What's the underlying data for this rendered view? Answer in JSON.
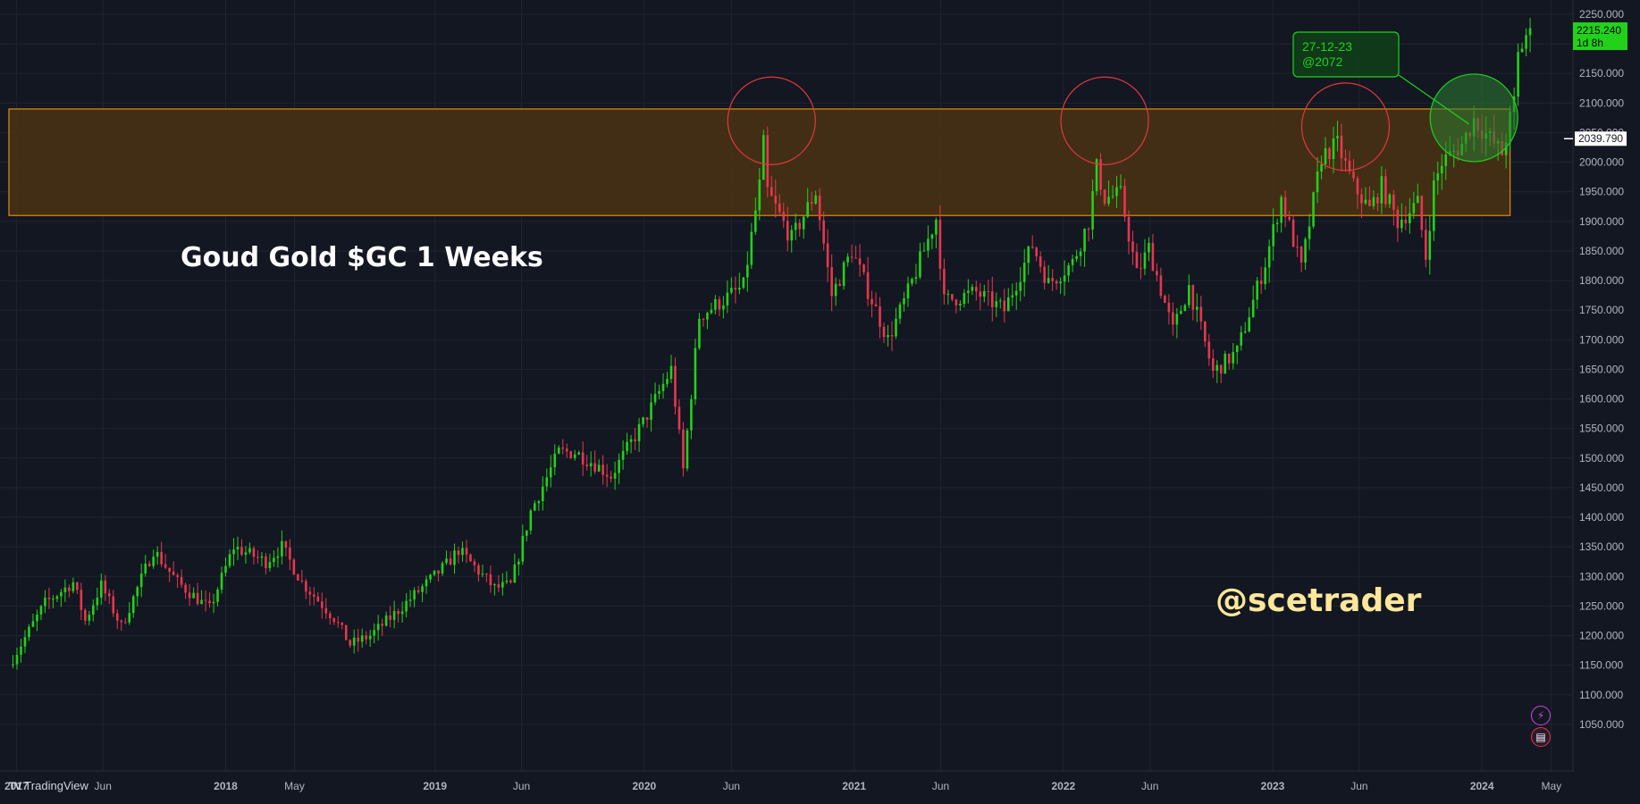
{
  "chart_data": {
    "type": "candlestick",
    "title": "Goud Gold $GC 1 Weeks",
    "symbol": "$GC",
    "interval": "1 Weeks",
    "watermark": "@scetrader",
    "ylim": [
      1000,
      2270
    ],
    "y_ticks": [
      "2250.000",
      "2200.000",
      "2150.000",
      "2100.000",
      "2050.000",
      "2000.000",
      "1950.000",
      "1900.000",
      "1850.000",
      "1800.000",
      "1750.000",
      "1700.000",
      "1650.000",
      "1600.000",
      "1550.000",
      "1500.000",
      "1450.000",
      "1400.000",
      "1350.000",
      "1300.000",
      "1250.000",
      "1200.000",
      "1150.000",
      "1100.000",
      "1050.000"
    ],
    "x_ticks": [
      {
        "label": "2017",
        "date": "2017-01"
      },
      {
        "label": "Jun",
        "date": "2017-06"
      },
      {
        "label": "2018",
        "date": "2018-01"
      },
      {
        "label": "May",
        "date": "2018-05"
      },
      {
        "label": "2019",
        "date": "2019-01"
      },
      {
        "label": "Jun",
        "date": "2019-06"
      },
      {
        "label": "2020",
        "date": "2020-01"
      },
      {
        "label": "Jun",
        "date": "2020-06"
      },
      {
        "label": "2021",
        "date": "2021-01"
      },
      {
        "label": "Jun",
        "date": "2021-06"
      },
      {
        "label": "2022",
        "date": "2022-01"
      },
      {
        "label": "Jun",
        "date": "2022-06"
      },
      {
        "label": "2023",
        "date": "2023-01"
      },
      {
        "label": "Jun",
        "date": "2023-06"
      },
      {
        "label": "2024",
        "date": "2024-01"
      },
      {
        "label": "May",
        "date": "2024-05"
      }
    ],
    "price_path": [
      [
        "2016-12-26",
        1150
      ],
      [
        "2017-02-27",
        1255
      ],
      [
        "2017-04-17",
        1290
      ],
      [
        "2017-05-08",
        1225
      ],
      [
        "2017-06-05",
        1285
      ],
      [
        "2017-07-10",
        1215
      ],
      [
        "2017-09-04",
        1345
      ],
      [
        "2017-10-16",
        1290
      ],
      [
        "2017-12-11",
        1245
      ],
      [
        "2018-01-22",
        1350
      ],
      [
        "2018-03-19",
        1325
      ],
      [
        "2018-04-16",
        1350
      ],
      [
        "2018-05-21",
        1290
      ],
      [
        "2018-07-16",
        1230
      ],
      [
        "2018-08-13",
        1185
      ],
      [
        "2018-09-17",
        1200
      ],
      [
        "2018-10-22",
        1230
      ],
      [
        "2019-01-28",
        1320
      ],
      [
        "2019-02-18",
        1345
      ],
      [
        "2019-04-22",
        1280
      ],
      [
        "2019-05-20",
        1285
      ],
      [
        "2019-06-24",
        1410
      ],
      [
        "2019-08-12",
        1510
      ],
      [
        "2019-09-09",
        1510
      ],
      [
        "2019-10-14",
        1490
      ],
      [
        "2019-11-11",
        1470
      ],
      [
        "2020-01-06",
        1560
      ],
      [
        "2020-02-24",
        1650
      ],
      [
        "2020-03-16",
        1480
      ],
      [
        "2020-04-13",
        1740
      ],
      [
        "2020-06-29",
        1790
      ],
      [
        "2020-07-27",
        1960
      ],
      [
        "2020-08-03",
        2030
      ],
      [
        "2020-08-10",
        1950
      ],
      [
        "2020-09-21",
        1870
      ],
      [
        "2020-11-02",
        1950
      ],
      [
        "2020-11-30",
        1775
      ],
      [
        "2021-01-04",
        1850
      ],
      [
        "2021-03-08",
        1700
      ],
      [
        "2021-04-12",
        1780
      ],
      [
        "2021-05-31",
        1905
      ],
      [
        "2021-06-14",
        1765
      ],
      [
        "2021-08-09",
        1780
      ],
      [
        "2021-09-27",
        1750
      ],
      [
        "2021-11-15",
        1860
      ],
      [
        "2021-12-13",
        1795
      ],
      [
        "2022-01-24",
        1830
      ],
      [
        "2022-02-21",
        1900
      ],
      [
        "2022-03-07",
        1990
      ],
      [
        "2022-03-21",
        1940
      ],
      [
        "2022-04-18",
        1945
      ],
      [
        "2022-05-16",
        1810
      ],
      [
        "2022-06-06",
        1855
      ],
      [
        "2022-07-18",
        1715
      ],
      [
        "2022-08-15",
        1790
      ],
      [
        "2022-09-26",
        1645
      ],
      [
        "2022-11-07",
        1680
      ],
      [
        "2022-12-26",
        1830
      ],
      [
        "2023-01-23",
        1940
      ],
      [
        "2023-02-27",
        1820
      ],
      [
        "2023-04-03",
        2010
      ],
      [
        "2023-05-01",
        2030
      ],
      [
        "2023-05-29",
        1960
      ],
      [
        "2023-06-26",
        1920
      ],
      [
        "2023-07-17",
        1960
      ],
      [
        "2023-08-14",
        1900
      ],
      [
        "2023-09-18",
        1930
      ],
      [
        "2023-10-02",
        1840
      ],
      [
        "2023-10-16",
        1960
      ],
      [
        "2023-10-30",
        2000
      ],
      [
        "2023-12-04",
        2030
      ],
      [
        "2023-12-25",
        2072
      ],
      [
        "2024-02-12",
        2015
      ],
      [
        "2024-03-04",
        2100
      ],
      [
        "2024-03-11",
        2180
      ],
      [
        "2024-03-25",
        2215
      ]
    ],
    "resistance_zone": [
      1910,
      2090
    ],
    "circled_tests": [
      {
        "date": "2020-08-10",
        "price": 2070
      },
      {
        "date": "2022-03-14",
        "price": 2070
      },
      {
        "date": "2023-05-08",
        "price": 2060
      },
      {
        "date": "2023-12-18",
        "price": 2075
      }
    ],
    "callout": {
      "line1": "27-12-23",
      "line2": "@2072",
      "date": "2023-12-25",
      "price": 2072
    },
    "last_price": {
      "value": "2215.240",
      "countdown": "1d 8h"
    },
    "crosshair_price": "2039.790",
    "colors": {
      "up": "#22d11a",
      "down": "#e6374e",
      "zone_fill": "#4a3212",
      "zone_stroke": "#e58a10",
      "circle": "#e5363f",
      "callout": "#1fd11f",
      "background": "#131722",
      "grid": "#1f2431",
      "title": "#ffffff",
      "watermark": "#ffe79a"
    }
  },
  "branding": {
    "logo": "TV",
    "name": "TradingView"
  },
  "icons": [
    "lightning-icon",
    "flag-icon"
  ]
}
